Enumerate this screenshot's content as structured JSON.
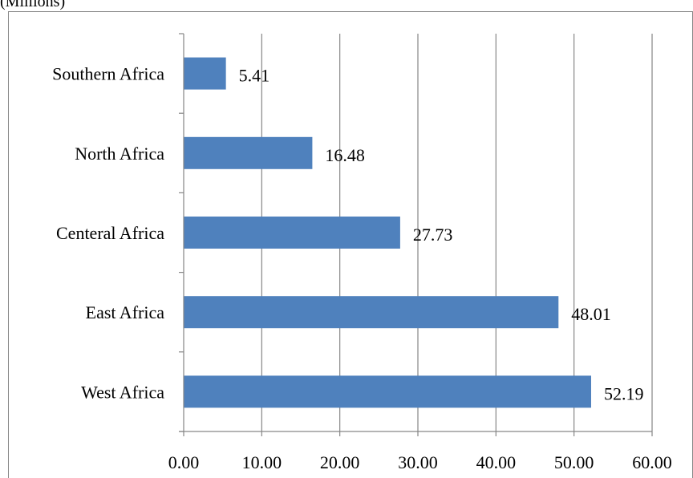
{
  "caption": "(Millions)",
  "chart_data": {
    "type": "bar",
    "orientation": "horizontal",
    "categories": [
      "Southern Africa",
      "North Africa",
      "Centeral Africa",
      "East Africa",
      "West Africa"
    ],
    "values": [
      5.41,
      16.48,
      27.73,
      48.01,
      52.19
    ],
    "data_labels": [
      "5.41",
      "16.48",
      "27.73",
      "48.01",
      "52.19"
    ],
    "x_ticks": [
      "0.00",
      "10.00",
      "20.00",
      "30.00",
      "40.00",
      "50.00",
      "60.00"
    ],
    "xlim": [
      0,
      60
    ],
    "grid": "vertical",
    "bar_color": "#4f81bd",
    "grid_color": "#868686"
  }
}
